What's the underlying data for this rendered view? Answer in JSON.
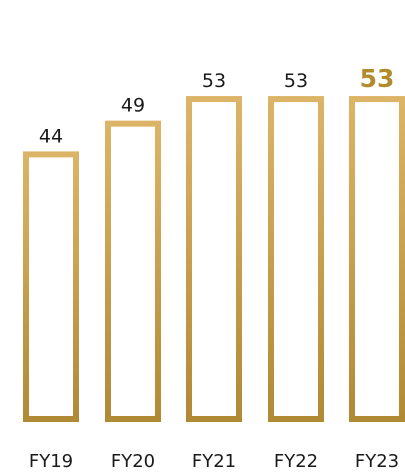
{
  "chart_data": {
    "type": "bar",
    "categories": [
      "FY19",
      "FY20",
      "FY21",
      "FY22",
      "FY23"
    ],
    "values": [
      44,
      49,
      53,
      53,
      53
    ],
    "highlight_index": 4,
    "title": "",
    "xlabel": "",
    "ylabel": "",
    "ylim": [
      0,
      56
    ],
    "grid": false,
    "legend": "none",
    "colors": {
      "bar_gradient_top": "#dcb468",
      "bar_gradient_bottom": "#b08a35",
      "highlight_label": "#b38b2f",
      "label": "#1a1a1a",
      "fill": "#ffffff"
    }
  }
}
